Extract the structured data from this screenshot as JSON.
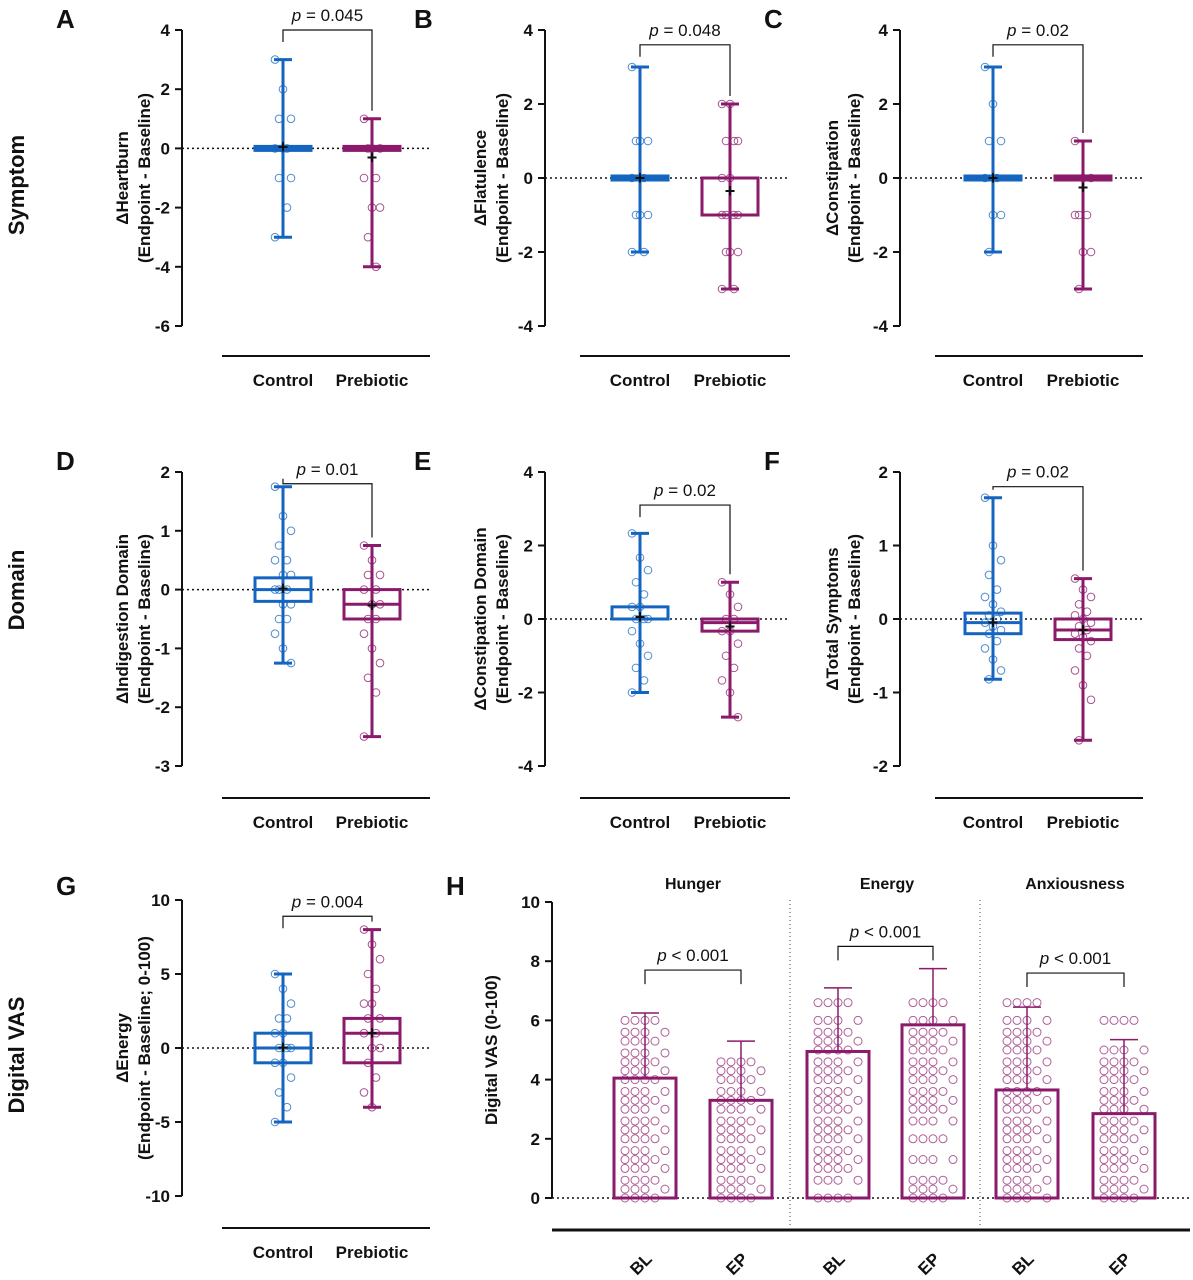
{
  "row_labels": [
    "Symptom",
    "Domain",
    "Digital VAS"
  ],
  "colors": {
    "control": "#1565c0",
    "prebiotic": "#8b1a6b"
  },
  "chart_data": [
    {
      "panel": "A",
      "type": "boxplot",
      "ylabel": [
        "ΔHeartburn",
        "(Endpoint - Baseline)"
      ],
      "ylim": [
        -6,
        4
      ],
      "yticks": [
        4,
        2,
        0,
        -2,
        -4,
        -6
      ],
      "categories": [
        "Control",
        "Prebiotic"
      ],
      "p_value": "p = 0.045",
      "bracket_top": 4,
      "series": [
        {
          "name": "Control",
          "min": -3,
          "q1": 0,
          "median": 0,
          "q3": 0,
          "max": 3,
          "mean": 0.05,
          "points": [
            3,
            2,
            1,
            1,
            0,
            0,
            0,
            -1,
            -1,
            -2,
            -3
          ]
        },
        {
          "name": "Prebiotic",
          "min": -4,
          "q1": 0,
          "median": 0,
          "q3": 0,
          "max": 1,
          "mean": -0.3,
          "points": [
            1,
            0,
            0,
            0,
            -1,
            -1,
            -2,
            -2,
            -3,
            -4
          ]
        }
      ]
    },
    {
      "panel": "B",
      "type": "boxplot",
      "ylabel": [
        "ΔFlatulence",
        "(Endpoint - Baseline)"
      ],
      "ylim": [
        -4,
        4
      ],
      "yticks": [
        4,
        2,
        0,
        -2,
        -4
      ],
      "categories": [
        "Control",
        "Prebiotic"
      ],
      "p_value": "p = 0.048",
      "bracket_top": 3.6,
      "series": [
        {
          "name": "Control",
          "min": -2,
          "q1": 0,
          "median": 0,
          "q3": 0,
          "max": 3,
          "mean": 0.0,
          "points": [
            3,
            1,
            1,
            1,
            0,
            0,
            -1,
            -1,
            -1,
            -2,
            -2
          ]
        },
        {
          "name": "Prebiotic",
          "min": -3,
          "q1": -1,
          "median": 0,
          "q3": 0,
          "max": 2,
          "mean": -0.35,
          "points": [
            2,
            2,
            1,
            1,
            1,
            0,
            0,
            -1,
            -1,
            -1,
            -1,
            -2,
            -2,
            -2,
            -3,
            -3
          ]
        }
      ]
    },
    {
      "panel": "C",
      "type": "boxplot",
      "ylabel": [
        "ΔConstipation",
        "(Endpoint - Baseline)"
      ],
      "ylim": [
        -4,
        4
      ],
      "yticks": [
        4,
        2,
        0,
        -2,
        -4
      ],
      "categories": [
        "Control",
        "Prebiotic"
      ],
      "p_value": "p = 0.02",
      "bracket_top": 3.6,
      "series": [
        {
          "name": "Control",
          "min": -2,
          "q1": 0,
          "median": 0,
          "q3": 0,
          "max": 3,
          "mean": 0.0,
          "points": [
            3,
            2,
            1,
            1,
            0,
            0,
            -1,
            -1,
            -2
          ]
        },
        {
          "name": "Prebiotic",
          "min": -3,
          "q1": 0,
          "median": 0,
          "q3": 0,
          "max": 1,
          "mean": -0.25,
          "points": [
            1,
            0,
            0,
            -1,
            -1,
            -1,
            -2,
            -2,
            -3
          ]
        }
      ]
    },
    {
      "panel": "D",
      "type": "boxplot",
      "ylabel": [
        "ΔIndigestion Domain",
        "(Endpoint - Baseline)"
      ],
      "ylim": [
        -3,
        2
      ],
      "yticks": [
        2,
        1,
        0,
        -1,
        -2,
        -3
      ],
      "categories": [
        "Control",
        "Prebiotic"
      ],
      "p_value": "p = 0.01",
      "bracket_top": 1.8,
      "series": [
        {
          "name": "Control",
          "min": -1.25,
          "q1": -0.2,
          "median": 0.0,
          "q3": 0.2,
          "max": 1.75,
          "mean": 0.02,
          "points": [
            1.75,
            1.25,
            1.0,
            0.75,
            0.5,
            0.5,
            0.25,
            0.25,
            0.0,
            0.0,
            0.0,
            -0.25,
            -0.25,
            -0.5,
            -0.5,
            -0.75,
            -1.0,
            -1.25
          ]
        },
        {
          "name": "Prebiotic",
          "min": -2.5,
          "q1": -0.5,
          "median": -0.25,
          "q3": 0.0,
          "max": 0.75,
          "mean": -0.27,
          "points": [
            0.75,
            0.5,
            0.25,
            0.25,
            0.0,
            0.0,
            -0.25,
            -0.25,
            -0.5,
            -0.5,
            -0.75,
            -1.0,
            -1.25,
            -1.5,
            -1.75,
            -2.5
          ]
        }
      ]
    },
    {
      "panel": "E",
      "type": "boxplot",
      "ylabel": [
        "ΔConstipation Domain",
        "(Endpoint - Baseline)"
      ],
      "ylim": [
        -4,
        4
      ],
      "yticks": [
        4,
        2,
        0,
        -2,
        -4
      ],
      "categories": [
        "Control",
        "Prebiotic"
      ],
      "p_value": "p = 0.02",
      "bracket_top": 3.1,
      "series": [
        {
          "name": "Control",
          "min": -2.0,
          "q1": 0.0,
          "median": 0.0,
          "q3": 0.33,
          "max": 2.33,
          "mean": 0.05,
          "points": [
            2.33,
            1.67,
            1.33,
            1.0,
            0.67,
            0.33,
            0.33,
            0.0,
            0.0,
            0.0,
            -0.33,
            -0.67,
            -1.0,
            -1.33,
            -1.67,
            -2.0
          ]
        },
        {
          "name": "Prebiotic",
          "min": -2.67,
          "q1": -0.33,
          "median": -0.1,
          "q3": 0.0,
          "max": 1.0,
          "mean": -0.2,
          "points": [
            1.0,
            0.67,
            0.33,
            0.0,
            0.0,
            -0.33,
            -0.33,
            -0.67,
            -1.0,
            -1.33,
            -1.67,
            -2.0,
            -2.67
          ]
        }
      ]
    },
    {
      "panel": "F",
      "type": "boxplot",
      "ylabel": [
        "ΔTotal Symptoms",
        "(Endpoint - Baseline)"
      ],
      "ylim": [
        -2,
        2
      ],
      "yticks": [
        2,
        1,
        0,
        -1,
        -2
      ],
      "categories": [
        "Control",
        "Prebiotic"
      ],
      "p_value": "p = 0.02",
      "bracket_top": 1.8,
      "series": [
        {
          "name": "Control",
          "min": -0.82,
          "q1": -0.2,
          "median": -0.05,
          "q3": 0.08,
          "max": 1.65,
          "mean": -0.05,
          "points": [
            1.65,
            1.0,
            0.8,
            0.6,
            0.4,
            0.3,
            0.2,
            0.1,
            0.05,
            0.0,
            -0.05,
            -0.1,
            -0.15,
            -0.2,
            -0.3,
            -0.4,
            -0.55,
            -0.7,
            -0.82
          ]
        },
        {
          "name": "Prebiotic",
          "min": -1.65,
          "q1": -0.28,
          "median": -0.15,
          "q3": 0.0,
          "max": 0.55,
          "mean": -0.15,
          "points": [
            0.55,
            0.4,
            0.3,
            0.2,
            0.1,
            0.05,
            0.0,
            -0.05,
            -0.1,
            -0.15,
            -0.2,
            -0.25,
            -0.3,
            -0.4,
            -0.5,
            -0.7,
            -0.9,
            -1.1,
            -1.65
          ]
        }
      ]
    },
    {
      "panel": "G",
      "type": "boxplot",
      "ylabel": [
        "ΔEnergy",
        "(Endpoint - Baseline; 0-100)"
      ],
      "ylim": [
        -10,
        10
      ],
      "yticks": [
        10,
        5,
        0,
        -5,
        -10
      ],
      "categories": [
        "Control",
        "Prebiotic"
      ],
      "p_value": "p = 0.004",
      "bracket_top": 8.9,
      "series": [
        {
          "name": "Control",
          "min": -5,
          "q1": -1,
          "median": 0,
          "q3": 1,
          "max": 5,
          "mean": 0.05,
          "points": [
            5,
            4,
            3,
            2,
            2,
            1,
            1,
            0,
            0,
            0,
            -1,
            -1,
            -2,
            -3,
            -4,
            -5
          ]
        },
        {
          "name": "Prebiotic",
          "min": -4,
          "q1": -1,
          "median": 1,
          "q3": 2,
          "max": 8,
          "mean": 1.0,
          "points": [
            8,
            7,
            6,
            5,
            4,
            3,
            3,
            2,
            2,
            1,
            1,
            0,
            0,
            -1,
            -2,
            -3,
            -4
          ]
        }
      ]
    },
    {
      "panel": "H",
      "type": "bar",
      "ylabel": "Digital VAS (0-100)",
      "ylim": [
        0,
        10
      ],
      "yticks": [
        10,
        8,
        6,
        4,
        2,
        0
      ],
      "groups": [
        {
          "title": "Hunger",
          "p_value": "p < 0.001",
          "bracket_top": 7.7,
          "bars": [
            {
              "label": "BL",
              "value": 4.05,
              "sd_top": 6.25,
              "points": [
                6.0,
                5.6,
                5.3,
                4.9,
                4.6,
                4.3,
                4.0,
                3.6,
                3.3,
                3.0,
                2.6,
                2.3,
                2.0,
                1.6,
                1.3,
                1.0,
                0.6,
                0.3,
                0.0
              ]
            },
            {
              "label": "EP",
              "value": 3.3,
              "sd_top": 5.3,
              "points": [
                4.6,
                4.3,
                4.0,
                3.6,
                3.3,
                3.0,
                2.6,
                2.3,
                2.0,
                1.6,
                1.3,
                1.0,
                0.6,
                0.3,
                0.0
              ]
            }
          ]
        },
        {
          "title": "Energy",
          "p_value": "p < 0.001",
          "bracket_top": 8.5,
          "bars": [
            {
              "label": "BL",
              "value": 4.95,
              "sd_top": 7.1,
              "points": [
                6.6,
                6.0,
                5.6,
                5.3,
                5.0,
                4.6,
                4.3,
                4.0,
                3.6,
                3.3,
                3.0,
                2.6,
                2.3,
                2.0,
                1.6,
                1.3,
                1.0,
                0.6,
                0.0
              ]
            },
            {
              "label": "EP",
              "value": 5.85,
              "sd_top": 7.75,
              "points": [
                6.6,
                6.0,
                5.6,
                5.3,
                5.0,
                4.6,
                4.3,
                4.0,
                3.6,
                3.3,
                3.0,
                2.6,
                2.0,
                1.3,
                0.6,
                0.3,
                0.0
              ]
            }
          ]
        },
        {
          "title": "Anxiousness",
          "p_value": "p < 0.001",
          "bracket_top": 7.6,
          "bars": [
            {
              "label": "BL",
              "value": 3.65,
              "sd_top": 6.45,
              "points": [
                6.6,
                6.0,
                5.6,
                5.3,
                5.0,
                4.6,
                4.3,
                4.0,
                3.6,
                3.3,
                3.0,
                2.6,
                2.3,
                2.0,
                1.6,
                1.3,
                1.0,
                0.6,
                0.3,
                0.0
              ]
            },
            {
              "label": "EP",
              "value": 2.85,
              "sd_top": 5.35,
              "points": [
                6.0,
                5.0,
                4.6,
                4.3,
                4.0,
                3.6,
                3.3,
                3.0,
                2.6,
                2.3,
                2.0,
                1.6,
                1.3,
                1.0,
                0.6,
                0.3,
                0.0
              ]
            }
          ]
        }
      ]
    }
  ]
}
